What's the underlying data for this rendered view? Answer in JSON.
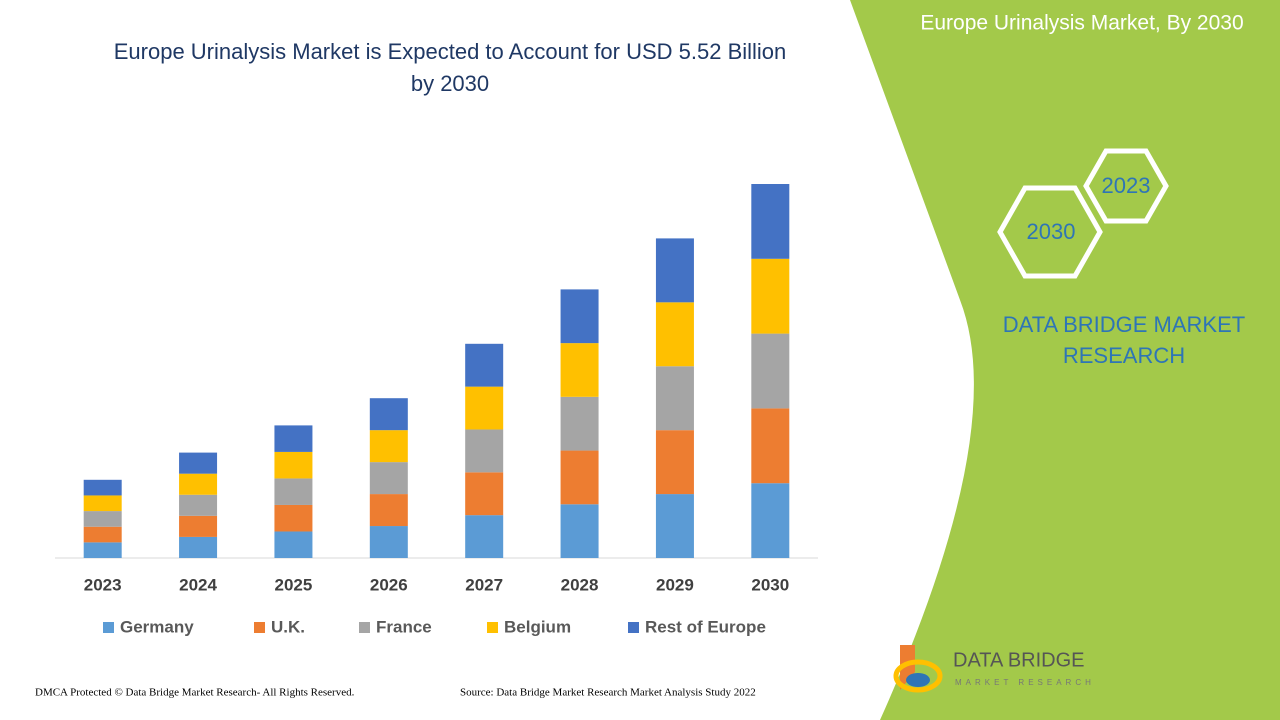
{
  "chart_data": {
    "type": "stacked-bar",
    "title": "Europe Urinalysis Market is Expected to Account for USD 5.52 Billion by 2030",
    "categories": [
      "2023",
      "2024",
      "2025",
      "2026",
      "2027",
      "2028",
      "2029",
      "2030"
    ],
    "series": [
      {
        "name": "Germany",
        "color": "#5b9bd5",
        "values": [
          0.23,
          0.31,
          0.39,
          0.47,
          0.63,
          0.79,
          0.94,
          1.1
        ]
      },
      {
        "name": "U.K.",
        "color": "#ed7d31",
        "values": [
          0.23,
          0.31,
          0.39,
          0.47,
          0.63,
          0.79,
          0.94,
          1.1
        ]
      },
      {
        "name": "France",
        "color": "#a5a5a5",
        "values": [
          0.23,
          0.31,
          0.39,
          0.47,
          0.63,
          0.79,
          0.94,
          1.1
        ]
      },
      {
        "name": "Belgium",
        "color": "#ffc000",
        "values": [
          0.23,
          0.31,
          0.39,
          0.47,
          0.63,
          0.79,
          0.94,
          1.1
        ]
      },
      {
        "name": "Rest of Europe",
        "color": "#4472c4",
        "values": [
          0.23,
          0.31,
          0.39,
          0.47,
          0.63,
          0.79,
          0.94,
          1.1
        ]
      }
    ]
  },
  "banner": "Europe Urinalysis Market, By 2030",
  "hexagons": [
    "2023",
    "2030"
  ],
  "brand": [
    "DATA BRIDGE MARKET",
    "RESEARCH"
  ],
  "logo": {
    "name": "DATA BRIDGE",
    "tagline": "MARKET RESEARCH"
  },
  "footer": {
    "left": "DMCA Protected © Data Bridge Market Research- All Rights Reserved.",
    "right": "Source: Data Bridge Market Research Market Analysis Study 2022"
  }
}
